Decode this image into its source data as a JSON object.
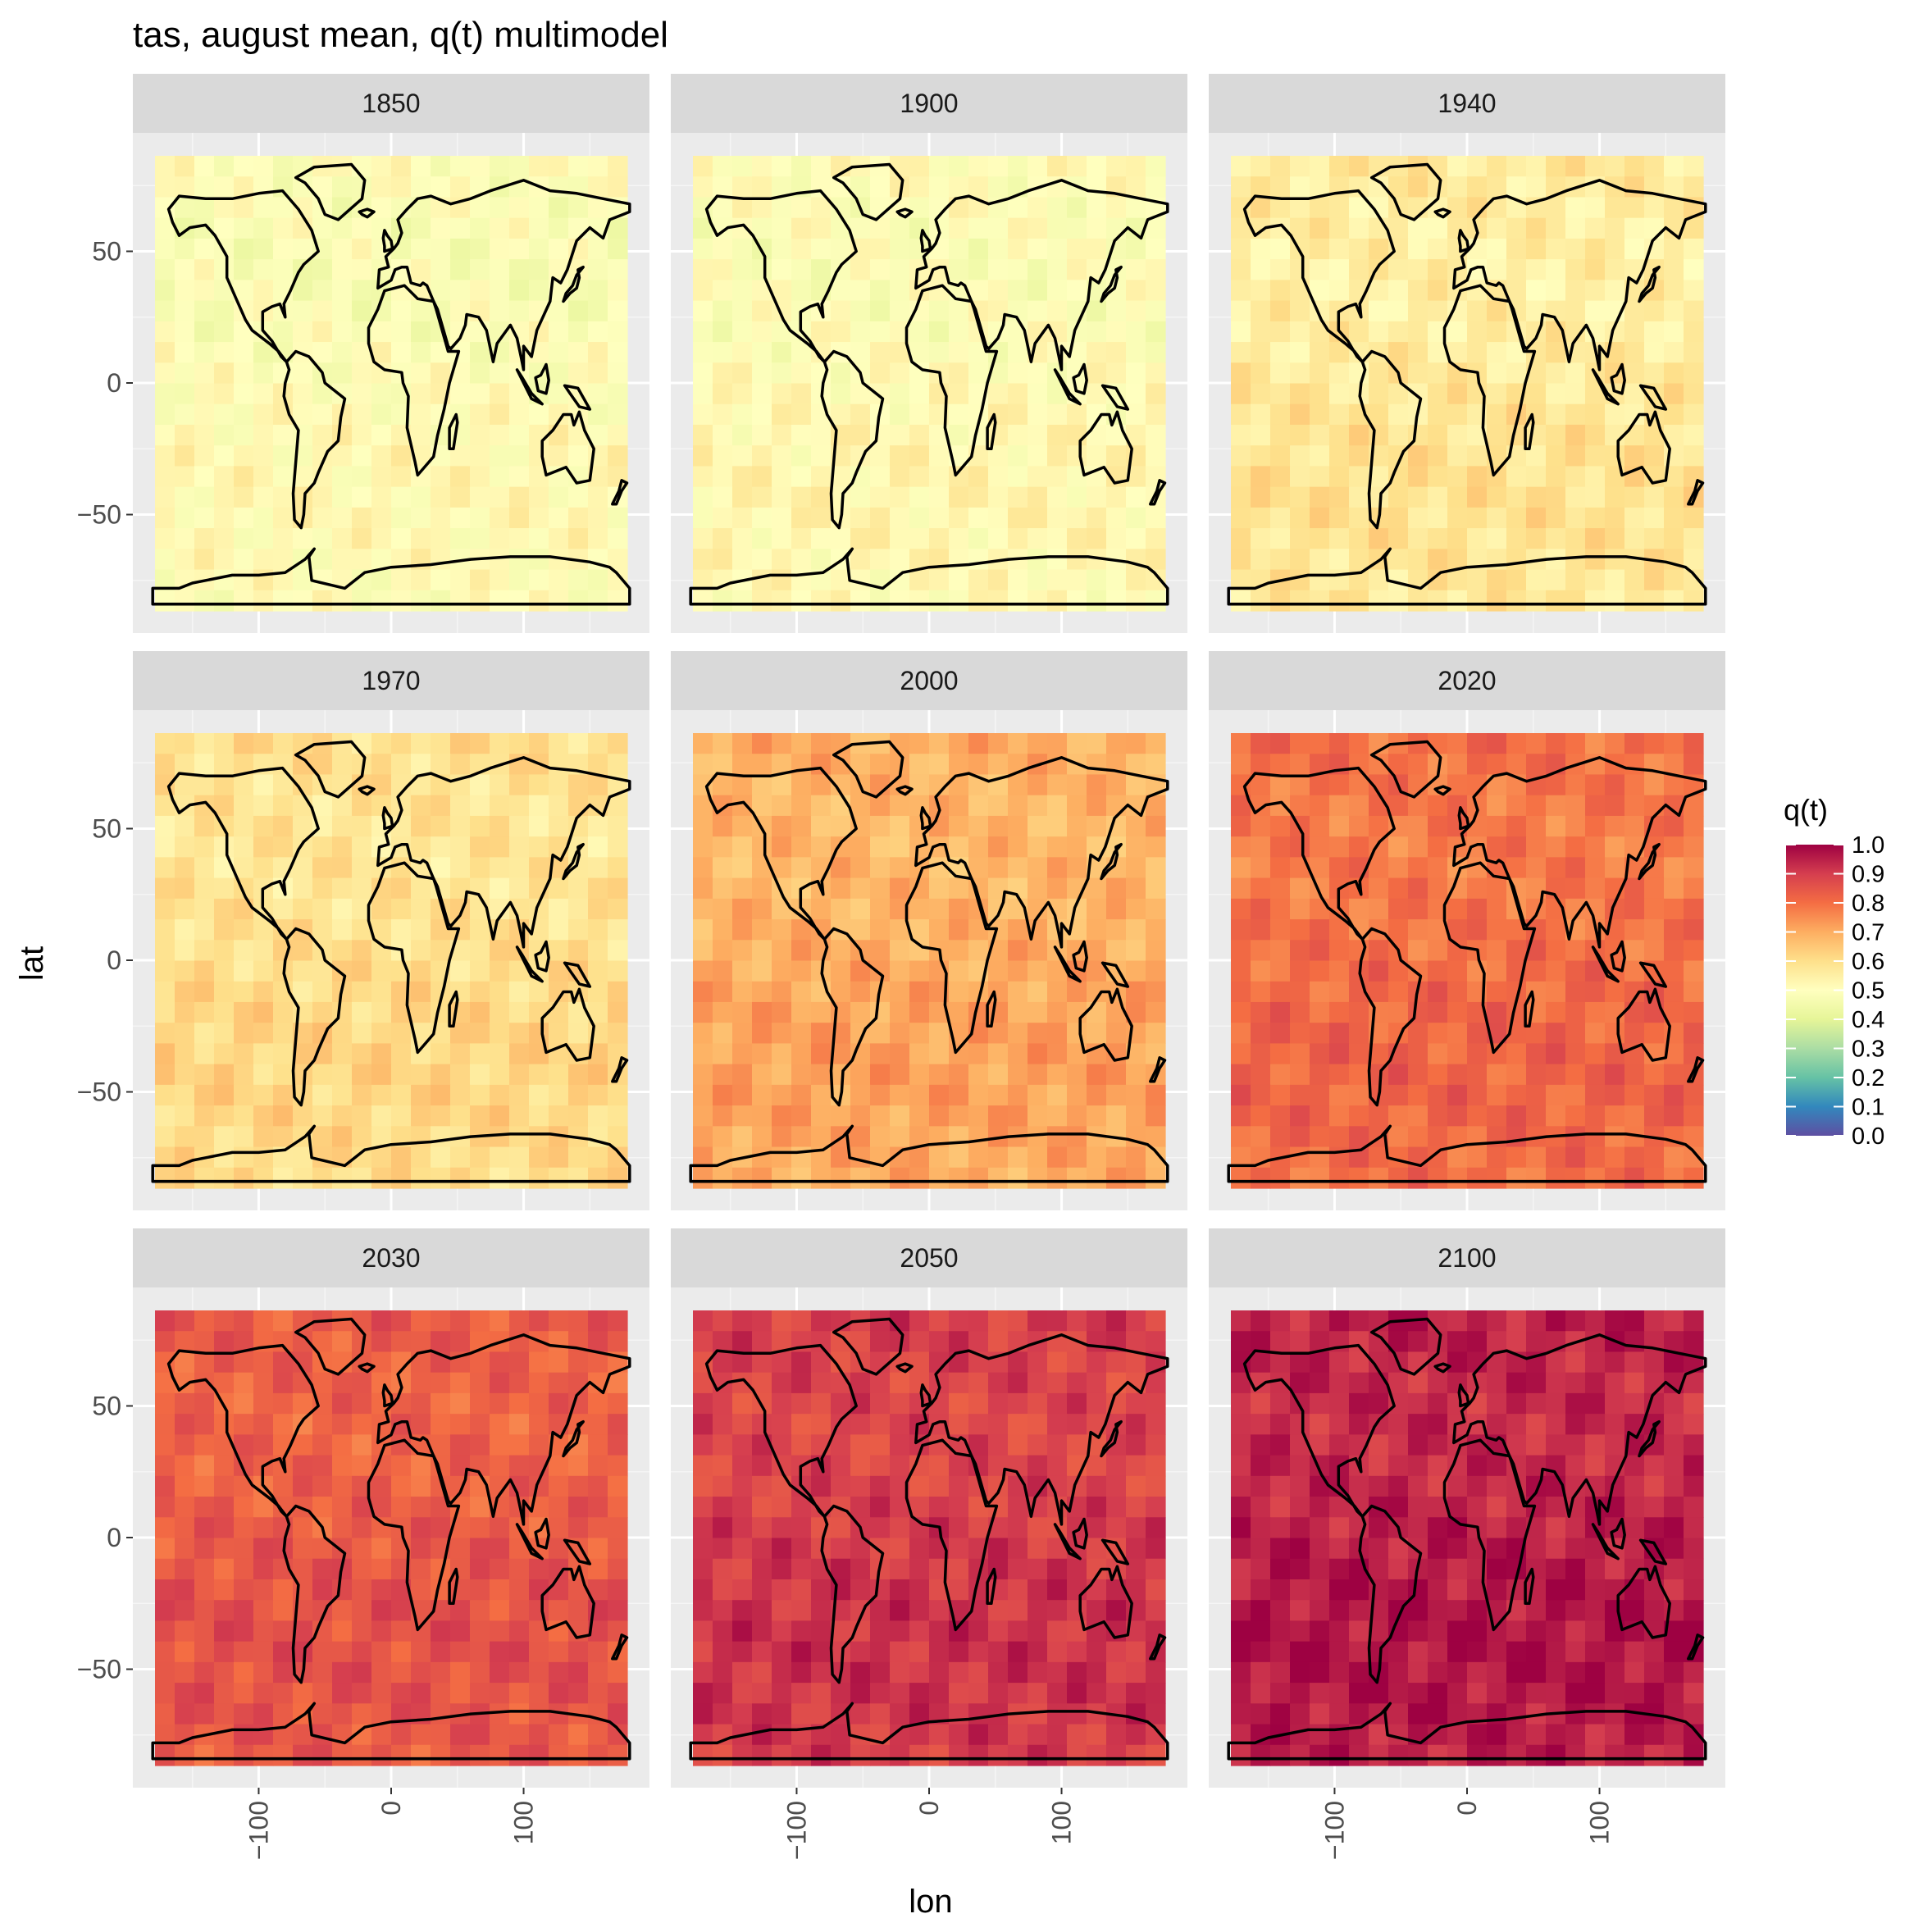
{
  "chart_data": {
    "type": "heatmap",
    "title": "tas, august mean, q(t) multimodel",
    "xlabel": "lon",
    "ylabel": "lat",
    "x_ticks": [
      -100,
      0,
      100
    ],
    "x_tick_labels": [
      "−100",
      "0",
      "100"
    ],
    "y_ticks": [
      50,
      0,
      -50
    ],
    "y_tick_labels": [
      "50",
      "0",
      "−50"
    ],
    "xlim": [
      -195,
      195
    ],
    "ylim": [
      -95,
      95
    ],
    "grid": true,
    "legend": {
      "title": "q(t)",
      "placement": "right",
      "ticks": [
        1.0,
        0.9,
        0.8,
        0.7,
        0.6,
        0.5,
        0.4,
        0.3,
        0.2,
        0.1,
        0.0
      ],
      "tick_labels": [
        "1.0",
        "0.9",
        "0.8",
        "0.7",
        "0.6",
        "0.5",
        "0.4",
        "0.3",
        "0.2",
        "0.1",
        "0.0"
      ],
      "colors": [
        "#5E4FA2",
        "#3288BD",
        "#66C2A5",
        "#ABDDA4",
        "#E6F598",
        "#FFFFBF",
        "#FEE08B",
        "#FDAE61",
        "#F46D43",
        "#D53E4F",
        "#9E0142"
      ]
    },
    "panels": [
      {
        "label": "1850",
        "mean_q": 0.5
      },
      {
        "label": "1900",
        "mean_q": 0.51
      },
      {
        "label": "1940",
        "mean_q": 0.57
      },
      {
        "label": "1970",
        "mean_q": 0.6
      },
      {
        "label": "2000",
        "mean_q": 0.7
      },
      {
        "label": "2020",
        "mean_q": 0.8
      },
      {
        "label": "2030",
        "mean_q": 0.84
      },
      {
        "label": "2050",
        "mean_q": 0.9
      },
      {
        "label": "2100",
        "mean_q": 0.95
      }
    ]
  }
}
